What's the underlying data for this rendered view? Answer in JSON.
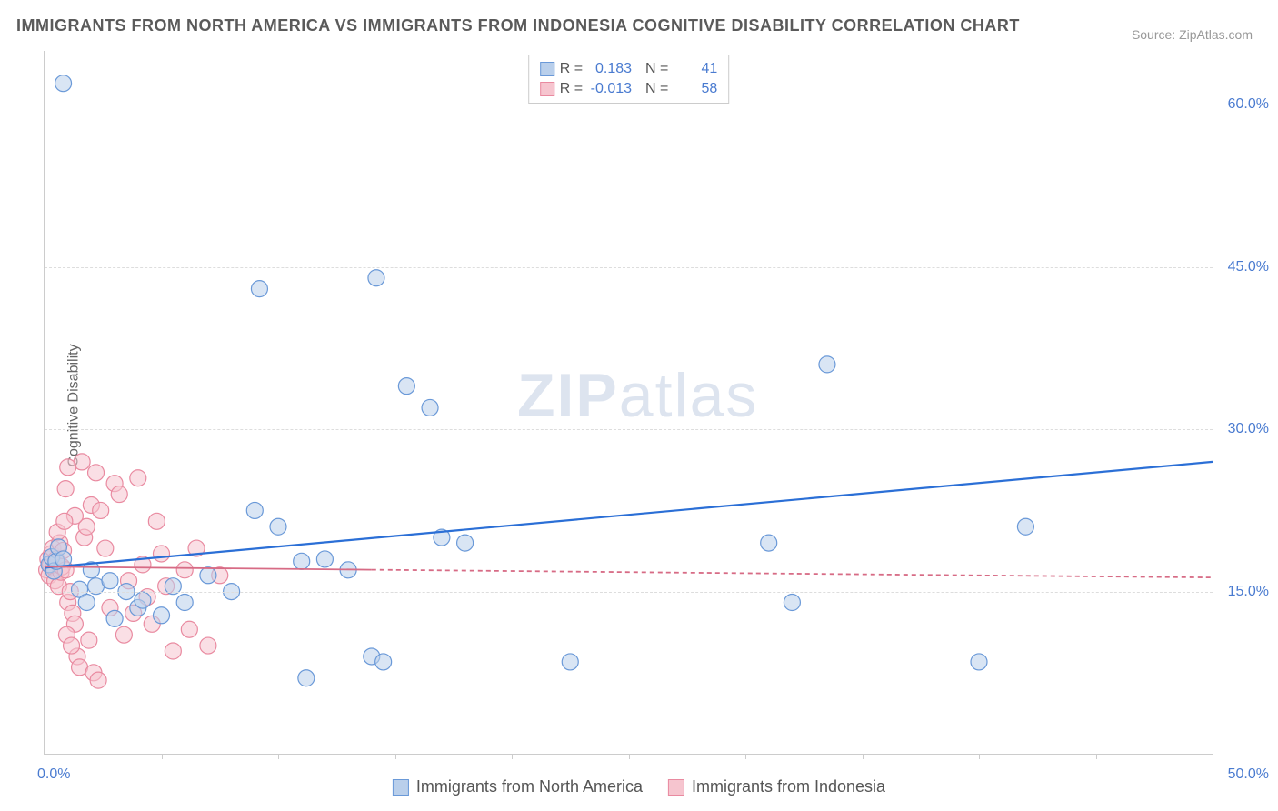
{
  "title": "IMMIGRANTS FROM NORTH AMERICA VS IMMIGRANTS FROM INDONESIA COGNITIVE DISABILITY CORRELATION CHART",
  "source": "Source: ZipAtlas.com",
  "ylabel": "Cognitive Disability",
  "watermark": {
    "bold": "ZIP",
    "rest": "atlas"
  },
  "chart": {
    "type": "scatter",
    "xlim": [
      0,
      50
    ],
    "ylim": [
      0,
      65
    ],
    "y_ticks": [
      15,
      30,
      45,
      60
    ],
    "y_tick_labels": [
      "15.0%",
      "30.0%",
      "45.0%",
      "60.0%"
    ],
    "x_ticks": [
      5,
      10,
      15,
      20,
      25,
      30,
      35,
      40,
      45
    ],
    "x_origin_label": "0.0%",
    "x_end_label": "50.0%",
    "background_color": "#ffffff",
    "grid_color": "#dddddd",
    "axis_color": "#cccccc",
    "tick_label_color": "#4a7bd0",
    "marker_radius": 9,
    "marker_opacity": 0.55,
    "marker_stroke_width": 1.2,
    "series": [
      {
        "name": "Immigrants from North America",
        "fill": "#b9cfeb",
        "stroke": "#6a99d8",
        "r": 0.183,
        "n": 41,
        "trend": {
          "x1": 0,
          "y1": 17.2,
          "x2": 50,
          "y2": 27.0,
          "stroke": "#2b6fd6",
          "width": 2.2,
          "dash": null,
          "dash_from_x": null
        },
        "points": [
          [
            0.2,
            17.5
          ],
          [
            0.3,
            18.2
          ],
          [
            0.4,
            16.9
          ],
          [
            0.5,
            17.8
          ],
          [
            0.6,
            19.1
          ],
          [
            0.8,
            18.0
          ],
          [
            0.8,
            62.0
          ],
          [
            1.5,
            15.2
          ],
          [
            1.8,
            14.0
          ],
          [
            2.0,
            17.0
          ],
          [
            2.2,
            15.5
          ],
          [
            2.8,
            16.0
          ],
          [
            3.0,
            12.5
          ],
          [
            3.5,
            15.0
          ],
          [
            4.0,
            13.5
          ],
          [
            4.2,
            14.2
          ],
          [
            5.0,
            12.8
          ],
          [
            5.5,
            15.5
          ],
          [
            6.0,
            14.0
          ],
          [
            7.0,
            16.5
          ],
          [
            8.0,
            15.0
          ],
          [
            9.0,
            22.5
          ],
          [
            9.2,
            43.0
          ],
          [
            10.0,
            21.0
          ],
          [
            11.0,
            17.8
          ],
          [
            11.2,
            7.0
          ],
          [
            12.0,
            18.0
          ],
          [
            13.0,
            17.0
          ],
          [
            14.0,
            9.0
          ],
          [
            14.2,
            44.0
          ],
          [
            14.5,
            8.5
          ],
          [
            15.5,
            34.0
          ],
          [
            16.5,
            32.0
          ],
          [
            17.0,
            20.0
          ],
          [
            18.0,
            19.5
          ],
          [
            22.5,
            8.5
          ],
          [
            32.0,
            14.0
          ],
          [
            31.0,
            19.5
          ],
          [
            33.5,
            36.0
          ],
          [
            40.0,
            8.5
          ],
          [
            42.0,
            21.0
          ]
        ]
      },
      {
        "name": "Immigrants from Indonesia",
        "fill": "#f6c5cf",
        "stroke": "#e98aa0",
        "r": -0.013,
        "n": 58,
        "trend": {
          "x1": 0,
          "y1": 17.3,
          "x2": 50,
          "y2": 16.3,
          "stroke": "#d76b85",
          "width": 1.8,
          "dash": "5,4",
          "dash_from_x": 14
        },
        "points": [
          [
            0.1,
            17.0
          ],
          [
            0.15,
            18.0
          ],
          [
            0.2,
            16.5
          ],
          [
            0.25,
            17.5
          ],
          [
            0.3,
            18.5
          ],
          [
            0.35,
            19.0
          ],
          [
            0.4,
            17.2
          ],
          [
            0.45,
            16.0
          ],
          [
            0.5,
            18.0
          ],
          [
            0.55,
            17.8
          ],
          [
            0.6,
            15.5
          ],
          [
            0.65,
            19.5
          ],
          [
            0.7,
            16.8
          ],
          [
            0.75,
            17.3
          ],
          [
            0.8,
            18.8
          ],
          [
            0.9,
            17.0
          ],
          [
            1.0,
            14.0
          ],
          [
            1.1,
            15.0
          ],
          [
            1.2,
            13.0
          ],
          [
            1.3,
            12.0
          ],
          [
            1.4,
            9.0
          ],
          [
            1.5,
            8.0
          ],
          [
            1.6,
            27.0
          ],
          [
            1.7,
            20.0
          ],
          [
            1.8,
            21.0
          ],
          [
            1.9,
            10.5
          ],
          [
            2.0,
            23.0
          ],
          [
            2.2,
            26.0
          ],
          [
            2.4,
            22.5
          ],
          [
            2.6,
            19.0
          ],
          [
            2.8,
            13.5
          ],
          [
            3.0,
            25.0
          ],
          [
            3.2,
            24.0
          ],
          [
            3.4,
            11.0
          ],
          [
            3.6,
            16.0
          ],
          [
            3.8,
            13.0
          ],
          [
            4.0,
            25.5
          ],
          [
            4.2,
            17.5
          ],
          [
            4.4,
            14.5
          ],
          [
            4.6,
            12.0
          ],
          [
            4.8,
            21.5
          ],
          [
            5.0,
            18.5
          ],
          [
            5.2,
            15.5
          ],
          [
            5.5,
            9.5
          ],
          [
            6.0,
            17.0
          ],
          [
            6.2,
            11.5
          ],
          [
            6.5,
            19.0
          ],
          [
            7.0,
            10.0
          ],
          [
            7.5,
            16.5
          ],
          [
            2.1,
            7.5
          ],
          [
            2.3,
            6.8
          ],
          [
            1.0,
            26.5
          ],
          [
            0.9,
            24.5
          ],
          [
            1.3,
            22.0
          ],
          [
            0.95,
            11.0
          ],
          [
            1.15,
            10.0
          ],
          [
            0.55,
            20.5
          ],
          [
            0.85,
            21.5
          ]
        ]
      }
    ],
    "stats_box": {
      "r_label": "R =",
      "n_label": "N ="
    },
    "legend_bottom": {
      "items": [
        {
          "label": "Immigrants from North America",
          "fill": "#b9cfeb",
          "stroke": "#6a99d8"
        },
        {
          "label": "Immigrants from Indonesia",
          "fill": "#f6c5cf",
          "stroke": "#e98aa0"
        }
      ]
    }
  }
}
